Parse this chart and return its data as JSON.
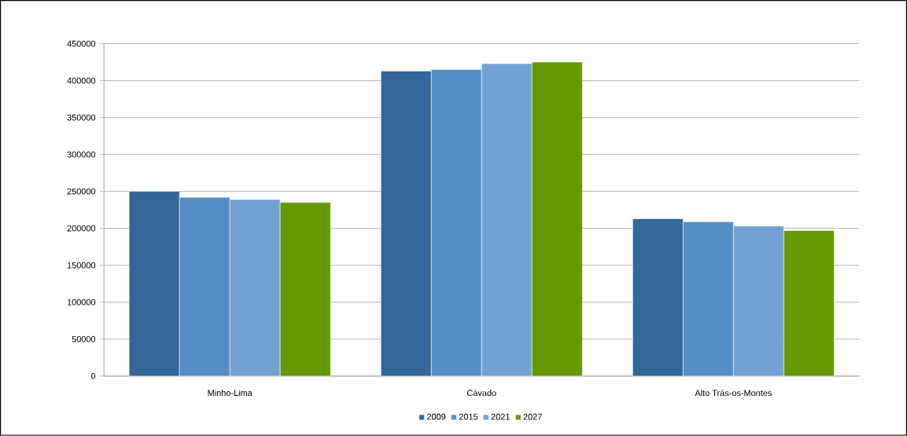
{
  "chart_data": {
    "type": "bar",
    "categories": [
      "Minho-Lima",
      "Cávado",
      "Alto Trás-os-Montes"
    ],
    "series": [
      {
        "name": "2009",
        "color": "#336699",
        "values": [
          250000,
          413000,
          213000
        ]
      },
      {
        "name": "2015",
        "color": "#558ec6",
        "values": [
          242000,
          415000,
          209000
        ]
      },
      {
        "name": "2021",
        "color": "#73a2d2",
        "values": [
          239000,
          423000,
          203000
        ]
      },
      {
        "name": "2027",
        "color": "#669900",
        "values": [
          235000,
          425000,
          197000
        ]
      }
    ],
    "ylim": [
      0,
      450000
    ],
    "yticks": [
      0,
      50000,
      100000,
      150000,
      200000,
      250000,
      300000,
      350000,
      400000,
      450000
    ],
    "grid": "y",
    "legend": "bottom"
  }
}
